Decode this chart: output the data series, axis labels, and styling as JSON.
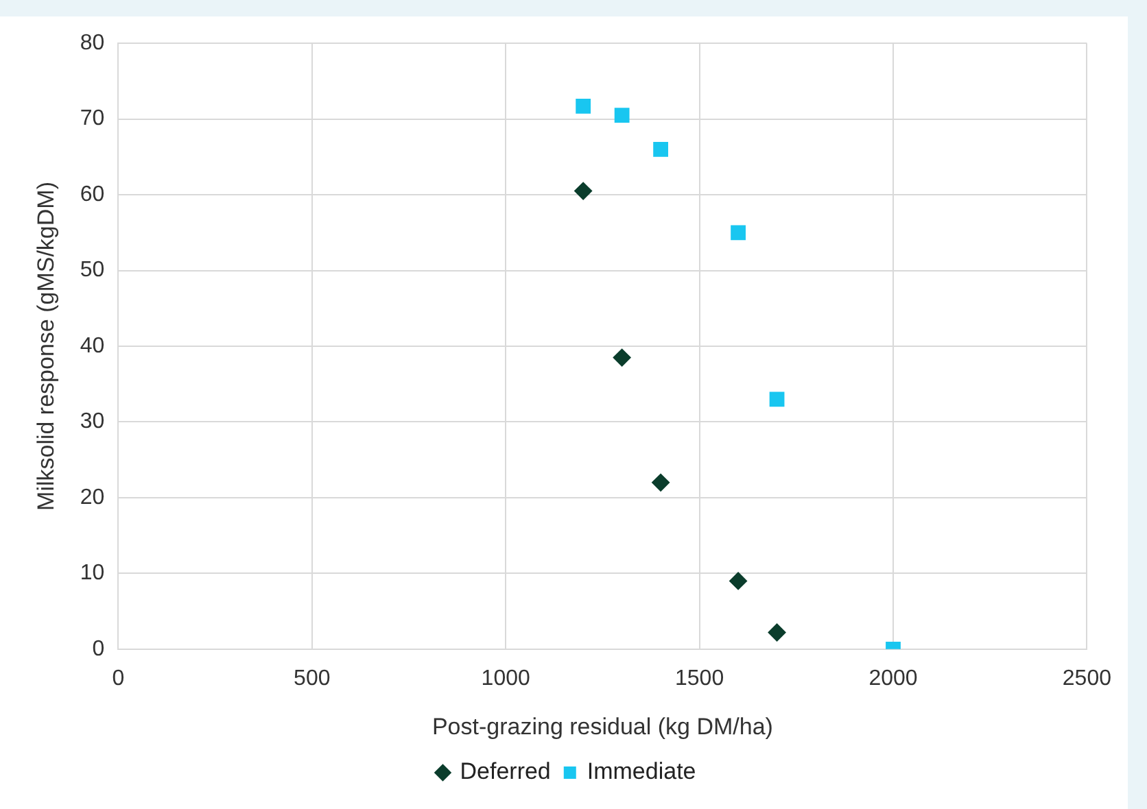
{
  "chart_data": {
    "type": "scatter",
    "xlabel": "Post-grazing residual (kg DM/ha)",
    "ylabel": "Milksolid response (gMS/kgDM)",
    "xlim": [
      0,
      2500
    ],
    "xticks": [
      0,
      500,
      1000,
      1500,
      2000,
      2500
    ],
    "ylim": [
      0,
      80
    ],
    "yticks": [
      0,
      10,
      20,
      30,
      40,
      50,
      60,
      70,
      80
    ],
    "grid": true,
    "legend": "bottom",
    "series": [
      {
        "name": "Deferred",
        "color": "#0b3d2c",
        "marker": "diamond",
        "x": [
          1200,
          1300,
          1400,
          1600,
          1700
        ],
        "values": [
          60.5,
          38.5,
          22,
          9,
          2.2
        ]
      },
      {
        "name": "Immediate",
        "color": "#19c6f0",
        "marker": "square",
        "x": [
          1200,
          1300,
          1400,
          1600,
          1700,
          2000
        ],
        "values": [
          71.7,
          70.5,
          66,
          55,
          33,
          0
        ]
      }
    ]
  }
}
